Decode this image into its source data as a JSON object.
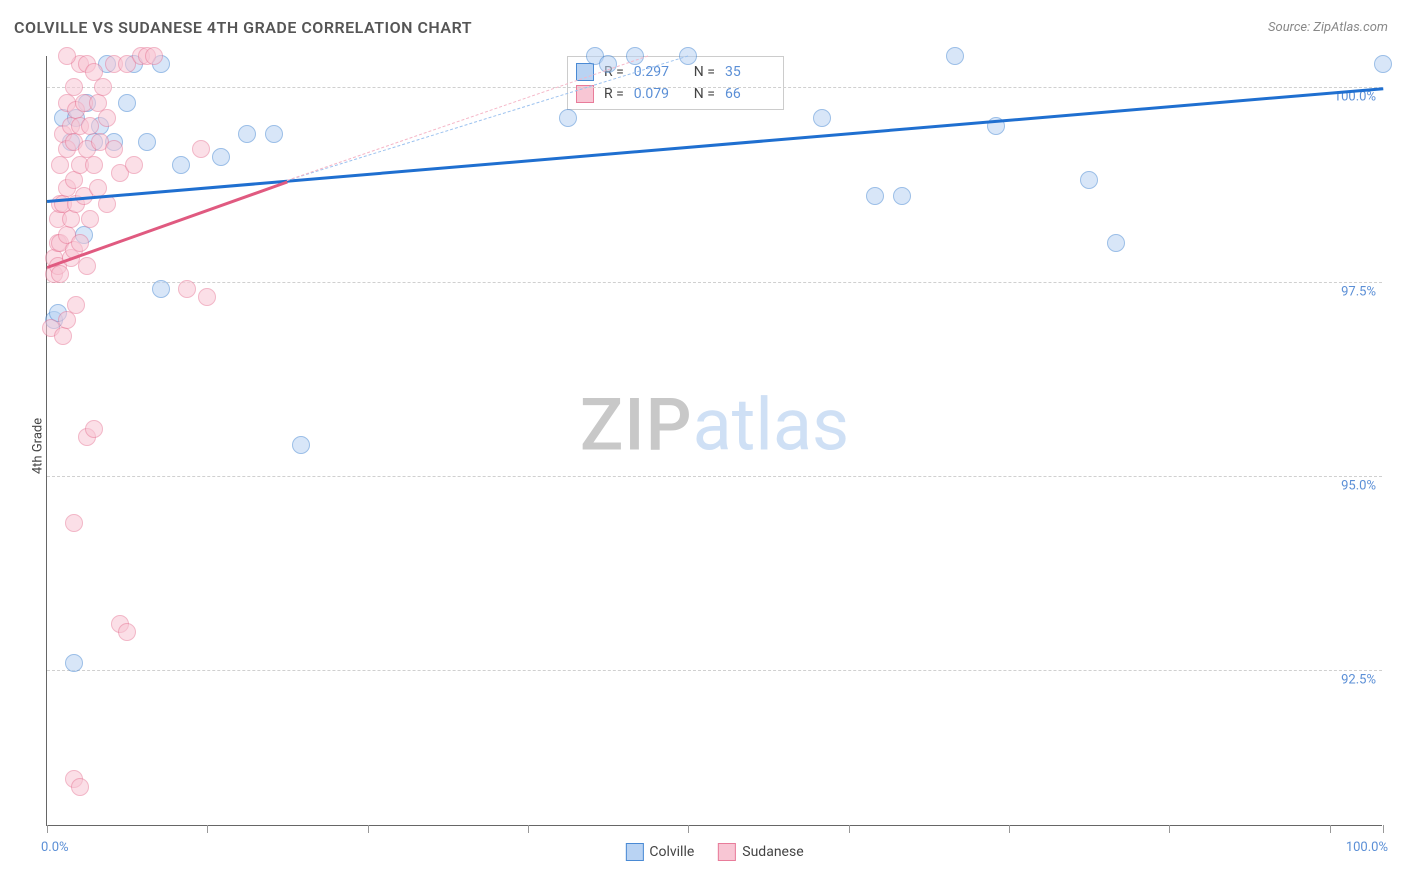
{
  "chart": {
    "type": "scatter",
    "title": "COLVILLE VS SUDANESE 4TH GRADE CORRELATION CHART",
    "source_label": "Source: ZipAtlas.com",
    "ylabel": "4th Grade",
    "background_color": "#ffffff",
    "grid_color": "#d0d0d0",
    "axis_color": "#666666",
    "title_fontsize": 16,
    "label_fontsize": 13,
    "xlim": [
      0,
      100
    ],
    "ylim": [
      90.5,
      100.4
    ],
    "xtick_positions": [
      0,
      12,
      24,
      36,
      48,
      60,
      72,
      84,
      96,
      100
    ],
    "xaxis_end_labels": {
      "left": "0.0%",
      "right": "100.0%"
    },
    "ytick_labels": [
      {
        "v": 92.5,
        "label": "92.5%"
      },
      {
        "v": 95.0,
        "label": "95.0%"
      },
      {
        "v": 97.5,
        "label": "97.5%"
      },
      {
        "v": 100.0,
        "label": "100.0%"
      }
    ],
    "marker_radius": 9,
    "marker_opacity": 0.55,
    "series": [
      {
        "name": "Colville",
        "color": "#6fa8e8",
        "fill": "#b9d3f3",
        "stroke": "#4a8ad4",
        "trend_color": "#1f6fd0",
        "trend_dash_color": "#9cc2ef",
        "R": "0.297",
        "N": "35",
        "trend": {
          "x1": 0,
          "y1": 98.55,
          "x2": 100,
          "y2": 100.0
        },
        "trend_dash": {
          "x1": 18,
          "y1": 98.8,
          "x2": 48,
          "y2": 100.4
        },
        "points": [
          [
            0.5,
            97.0
          ],
          [
            0.8,
            97.1
          ],
          [
            1.2,
            99.6
          ],
          [
            1.8,
            99.3
          ],
          [
            2.2,
            99.6
          ],
          [
            2.8,
            98.1
          ],
          [
            3.0,
            99.8
          ],
          [
            3.5,
            99.3
          ],
          [
            4.0,
            99.5
          ],
          [
            4.5,
            100.3
          ],
          [
            5.0,
            99.3
          ],
          [
            6.0,
            99.8
          ],
          [
            6.5,
            100.3
          ],
          [
            7.5,
            99.3
          ],
          [
            8.5,
            97.4
          ],
          [
            8.5,
            100.3
          ],
          [
            10,
            99.0
          ],
          [
            13,
            99.1
          ],
          [
            15,
            99.4
          ],
          [
            17,
            99.4
          ],
          [
            19,
            95.4
          ],
          [
            39,
            99.6
          ],
          [
            41,
            100.4
          ],
          [
            42,
            100.3
          ],
          [
            44,
            100.4
          ],
          [
            48,
            100.4
          ],
          [
            58,
            99.6
          ],
          [
            62,
            98.6
          ],
          [
            64,
            98.6
          ],
          [
            68,
            100.4
          ],
          [
            71,
            99.5
          ],
          [
            78,
            98.8
          ],
          [
            80,
            98.0
          ],
          [
            100,
            100.3
          ],
          [
            2.0,
            92.6
          ]
        ]
      },
      {
        "name": "Sudanese",
        "color": "#f29fb5",
        "fill": "#f8c6d4",
        "stroke": "#e87c9a",
        "trend_color": "#e05a80",
        "trend_dash_color": "#f5b6c7",
        "R": "0.079",
        "N": "66",
        "trend": {
          "x1": 0,
          "y1": 97.7,
          "x2": 18,
          "y2": 98.8
        },
        "trend_dash": {
          "x1": 18,
          "y1": 98.8,
          "x2": 45,
          "y2": 100.4
        },
        "points": [
          [
            0.3,
            96.9
          ],
          [
            0.5,
            97.6
          ],
          [
            0.5,
            97.8
          ],
          [
            0.8,
            97.7
          ],
          [
            0.8,
            98.0
          ],
          [
            0.8,
            98.3
          ],
          [
            1.0,
            97.6
          ],
          [
            1.0,
            98.0
          ],
          [
            1.0,
            98.5
          ],
          [
            1.0,
            99.0
          ],
          [
            1.2,
            96.8
          ],
          [
            1.2,
            98.5
          ],
          [
            1.2,
            99.4
          ],
          [
            1.5,
            97.0
          ],
          [
            1.5,
            98.1
          ],
          [
            1.5,
            98.7
          ],
          [
            1.5,
            99.2
          ],
          [
            1.5,
            99.8
          ],
          [
            1.8,
            97.8
          ],
          [
            1.8,
            98.3
          ],
          [
            1.8,
            99.5
          ],
          [
            2.0,
            97.9
          ],
          [
            2.0,
            98.8
          ],
          [
            2.0,
            99.3
          ],
          [
            2.0,
            100.0
          ],
          [
            2.2,
            97.2
          ],
          [
            2.2,
            98.5
          ],
          [
            2.2,
            99.7
          ],
          [
            2.5,
            98.0
          ],
          [
            2.5,
            99.0
          ],
          [
            2.5,
            99.5
          ],
          [
            2.5,
            100.3
          ],
          [
            2.8,
            98.6
          ],
          [
            2.8,
            99.8
          ],
          [
            3.0,
            97.7
          ],
          [
            3.0,
            99.2
          ],
          [
            3.0,
            100.3
          ],
          [
            3.2,
            98.3
          ],
          [
            3.2,
            99.5
          ],
          [
            3.5,
            99.0
          ],
          [
            3.5,
            100.2
          ],
          [
            3.8,
            98.7
          ],
          [
            3.8,
            99.8
          ],
          [
            4.0,
            99.3
          ],
          [
            4.2,
            100.0
          ],
          [
            4.5,
            98.5
          ],
          [
            4.5,
            99.6
          ],
          [
            5.0,
            99.2
          ],
          [
            5.0,
            100.3
          ],
          [
            5.5,
            98.9
          ],
          [
            6.0,
            100.3
          ],
          [
            6.5,
            99.0
          ],
          [
            7.0,
            100.4
          ],
          [
            7.5,
            100.4
          ],
          [
            8.0,
            100.4
          ],
          [
            10.5,
            97.4
          ],
          [
            11.5,
            99.2
          ],
          [
            12.0,
            97.3
          ],
          [
            2.0,
            94.4
          ],
          [
            3.0,
            95.5
          ],
          [
            3.5,
            95.6
          ],
          [
            5.5,
            93.1
          ],
          [
            6.0,
            93.0
          ],
          [
            2.0,
            91.1
          ],
          [
            2.5,
            91.0
          ],
          [
            1.5,
            100.4
          ]
        ]
      }
    ],
    "legend_corr": {
      "rows": [
        {
          "swatch_fill": "#b9d3f3",
          "swatch_stroke": "#4a8ad4",
          "r_label": "R =",
          "r_val": "0.297",
          "n_label": "N =",
          "n_val": "35"
        },
        {
          "swatch_fill": "#f8c6d4",
          "swatch_stroke": "#e87c9a",
          "r_label": "R =",
          "r_val": "0.079",
          "n_label": "N =",
          "n_val": "66"
        }
      ]
    },
    "bottom_legend": [
      {
        "swatch_fill": "#b9d3f3",
        "swatch_stroke": "#4a8ad4",
        "label": "Colville"
      },
      {
        "swatch_fill": "#f8c6d4",
        "swatch_stroke": "#e87c9a",
        "label": "Sudanese"
      }
    ],
    "watermark": {
      "part1": "ZIP",
      "part2": "atlas"
    }
  }
}
